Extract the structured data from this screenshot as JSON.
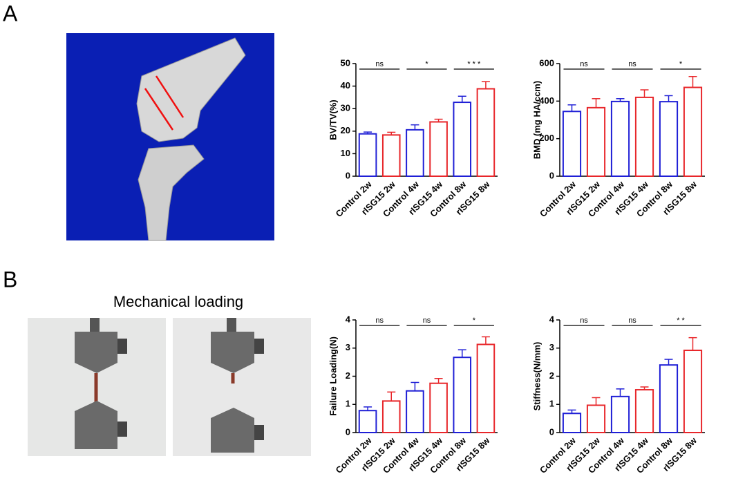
{
  "panels": [
    {
      "label": "A"
    },
    {
      "label": "B",
      "title": "Mechanical loading"
    }
  ],
  "chart_data": [
    {
      "type": "bar",
      "ylabel": "BV/TV(%)",
      "categories": [
        "Control 2w",
        "rISG15 2w",
        "Control 4w",
        "rISG15 4w",
        "Control 8w",
        "rISG15 8w"
      ],
      "values": [
        18.8,
        18.3,
        20.6,
        24.1,
        32.8,
        38.8
      ],
      "errors": [
        0.8,
        1.2,
        2.2,
        1.2,
        2.7,
        3.2
      ],
      "colors": [
        "#1f1fd6",
        "#e8262a",
        "#1f1fd6",
        "#e8262a",
        "#1f1fd6",
        "#e8262a"
      ],
      "ylim": [
        0,
        50
      ],
      "yticks": [
        0,
        10,
        20,
        30,
        40,
        50
      ],
      "annotations": [
        "ns",
        "*",
        "* * *"
      ]
    },
    {
      "type": "bar",
      "ylabel": "BMD (mg HA/ccm)",
      "categories": [
        "Control 2w",
        "rISG15 2w",
        "Control 4w",
        "rISG15 4w",
        "Control 8w",
        "rISG15 8w"
      ],
      "values": [
        345,
        365,
        398,
        420,
        397,
        473
      ],
      "errors": [
        35,
        48,
        15,
        40,
        32,
        58
      ],
      "colors": [
        "#1f1fd6",
        "#e8262a",
        "#1f1fd6",
        "#e8262a",
        "#1f1fd6",
        "#e8262a"
      ],
      "ylim": [
        0,
        600
      ],
      "yticks": [
        0,
        200,
        400,
        600
      ],
      "annotations": [
        "ns",
        "ns",
        "*"
      ]
    },
    {
      "type": "bar",
      "ylabel": "Failure Loading(N)",
      "categories": [
        "Control 2w",
        "rISG15 2w",
        "Control 4w",
        "rISG15 4w",
        "Control 8w",
        "rISG15 8w"
      ],
      "values": [
        0.78,
        1.12,
        1.48,
        1.75,
        2.67,
        3.13
      ],
      "errors": [
        0.13,
        0.32,
        0.3,
        0.17,
        0.27,
        0.27
      ],
      "colors": [
        "#1f1fd6",
        "#e8262a",
        "#1f1fd6",
        "#e8262a",
        "#1f1fd6",
        "#e8262a"
      ],
      "ylim": [
        0,
        4
      ],
      "yticks": [
        0,
        1,
        2,
        3,
        4
      ],
      "annotations": [
        "ns",
        "ns",
        "*"
      ]
    },
    {
      "type": "bar",
      "ylabel": "Stiffness(N/mm)",
      "categories": [
        "Control 2w",
        "rISG15 2w",
        "Control 4w",
        "rISG15 4w",
        "Control 8w",
        "rISG15 8w"
      ],
      "values": [
        0.68,
        0.97,
        1.28,
        1.52,
        2.4,
        2.92
      ],
      "errors": [
        0.12,
        0.27,
        0.27,
        0.1,
        0.2,
        0.45
      ],
      "colors": [
        "#1f1fd6",
        "#e8262a",
        "#1f1fd6",
        "#e8262a",
        "#1f1fd6",
        "#e8262a"
      ],
      "ylim": [
        0,
        4
      ],
      "yticks": [
        0,
        1,
        2,
        3,
        4
      ],
      "annotations": [
        "ns",
        "ns",
        "* *"
      ]
    }
  ]
}
